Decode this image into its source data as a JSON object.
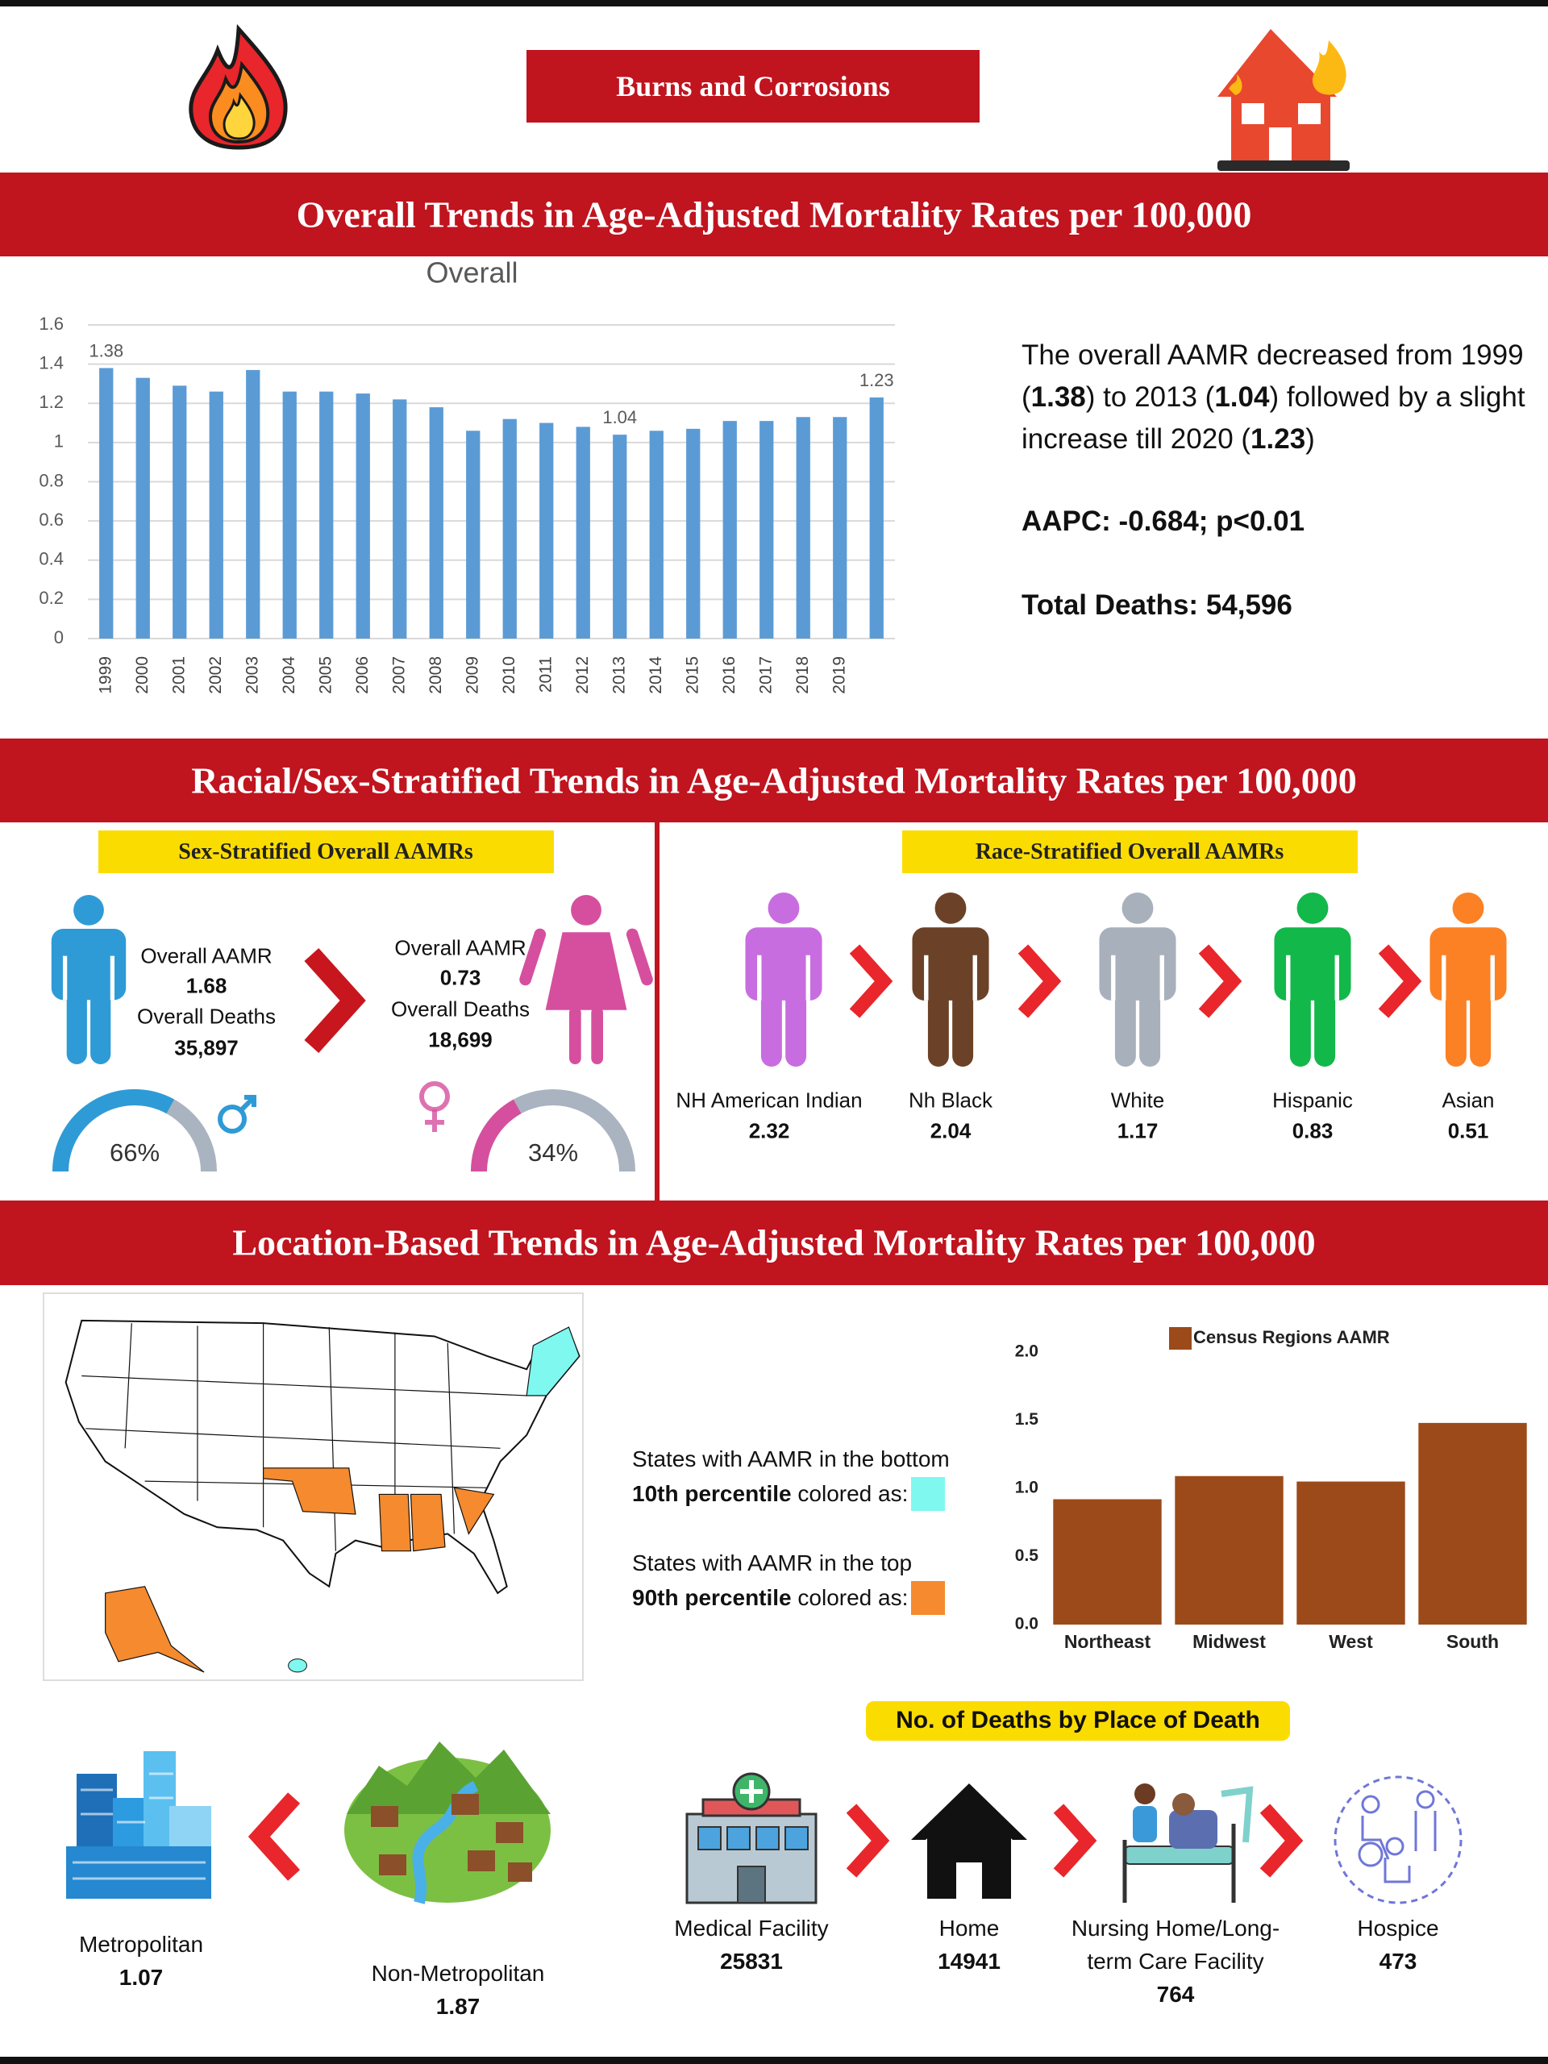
{
  "header": {
    "title": "Burns and Corrosions"
  },
  "sections": [
    "Overall Trends in Age-Adjusted Mortality Rates per 100,000",
    "Racial/Sex-Stratified Trends in Age-Adjusted Mortality Rates per 100,000",
    "Location-Based Trends in Age-Adjusted Mortality Rates per 100,000"
  ],
  "summary": {
    "parts": [
      "The overall AAMR decreased from 1999 (",
      "1.38",
      ") to 2013 (",
      "1.04",
      ") followed by a slight increase till 2020 (",
      "1.23",
      ")"
    ],
    "aapc": "AAPC: -0.684; p<0.01",
    "total_deaths": "Total Deaths: 54,596"
  },
  "sex": {
    "title": "Sex-Stratified Overall AAMRs",
    "groups": [
      {
        "aamr_label": "Overall AAMR",
        "aamr": 1.68,
        "deaths_label": "Overall Deaths",
        "deaths": "35,897",
        "share": 66,
        "share_label": "66%",
        "color": "#2e9bd6"
      },
      {
        "aamr_label": "Overall AAMR",
        "aamr": 0.73,
        "deaths_label": "Overall Deaths",
        "deaths": "18,699",
        "share": 34,
        "share_label": "34%",
        "color": "#d64f9e"
      }
    ]
  },
  "race": {
    "title": "Race-Stratified Overall AAMRs",
    "groups": [
      {
        "name": "NH American Indian",
        "value": 2.32,
        "color": "#c86de0"
      },
      {
        "name": "Nh Black",
        "value": 2.04,
        "color": "#6b4228"
      },
      {
        "name": "White",
        "value": 1.17,
        "color": "#a8b0bc"
      },
      {
        "name": "Hispanic",
        "value": 0.83,
        "color": "#12b84a"
      },
      {
        "name": "Asian",
        "value": 0.51,
        "color": "#fb8124"
      }
    ]
  },
  "map_legend": {
    "bottom": {
      "lines": [
        "States with AAMR in the bottom",
        "10th percentile",
        " colored as:"
      ],
      "color": "#7ff8f0"
    },
    "top": {
      "lines": [
        "States with AAMR in the top",
        "90th percentile",
        " colored as:"
      ],
      "color": "#f58a2f"
    }
  },
  "urbanization": {
    "groups": [
      {
        "name": "Metropolitan",
        "value": 1.07
      },
      {
        "name": "Non-Metropolitan",
        "value": 1.87
      }
    ]
  },
  "place_of_death": {
    "title": "No. of Deaths by Place of Death",
    "groups": [
      {
        "name": "Medical Facility",
        "value": 25831
      },
      {
        "name": "Home",
        "value": 14941
      },
      {
        "name": "Nursing Home/Long-term Care Facility",
        "value": 764
      },
      {
        "name": "Hospice",
        "value": 473
      }
    ]
  },
  "chart_data": [
    {
      "type": "bar",
      "title": "Overall",
      "categories": [
        "1999",
        "2000",
        "2001",
        "2002",
        "2003",
        "2004",
        "2005",
        "2006",
        "2007",
        "2008",
        "2009",
        "2010",
        "2011",
        "2012",
        "2013",
        "2014",
        "2015",
        "2016",
        "2017",
        "2018",
        "2019",
        null
      ],
      "values": [
        1.38,
        1.33,
        1.29,
        1.26,
        1.37,
        1.26,
        1.26,
        1.25,
        1.22,
        1.18,
        1.06,
        1.12,
        1.1,
        1.08,
        1.04,
        1.06,
        1.07,
        1.11,
        1.11,
        1.13,
        1.13,
        1.23
      ],
      "value_labels": [
        "1.38",
        null,
        null,
        null,
        null,
        null,
        null,
        null,
        null,
        null,
        null,
        null,
        null,
        null,
        "1.04",
        null,
        null,
        null,
        null,
        null,
        null,
        "1.23"
      ],
      "color": "#5b9bd5",
      "ylim": [
        0,
        1.6
      ],
      "yticks": [
        0,
        0.2,
        0.4,
        0.6,
        0.8,
        1,
        1.2,
        1.4,
        1.6
      ],
      "grid": true
    },
    {
      "type": "bar",
      "categories": [
        "Northeast",
        "Midwest",
        "West",
        "South"
      ],
      "series": [
        {
          "name": "Census Regions AAMR",
          "color": "#9c4a1a",
          "values": [
            0.92,
            1.09,
            1.05,
            1.48
          ]
        }
      ],
      "ylim": [
        0,
        2
      ],
      "yticks": [
        {
          "value": 0,
          "label": "0.0"
        },
        {
          "value": 0.5,
          "label": "0.5"
        },
        {
          "value": 1,
          "label": "1.0"
        },
        {
          "value": 1.5,
          "label": "1.5"
        },
        {
          "value": 2,
          "label": "2.0"
        }
      ],
      "grid": false
    }
  ]
}
